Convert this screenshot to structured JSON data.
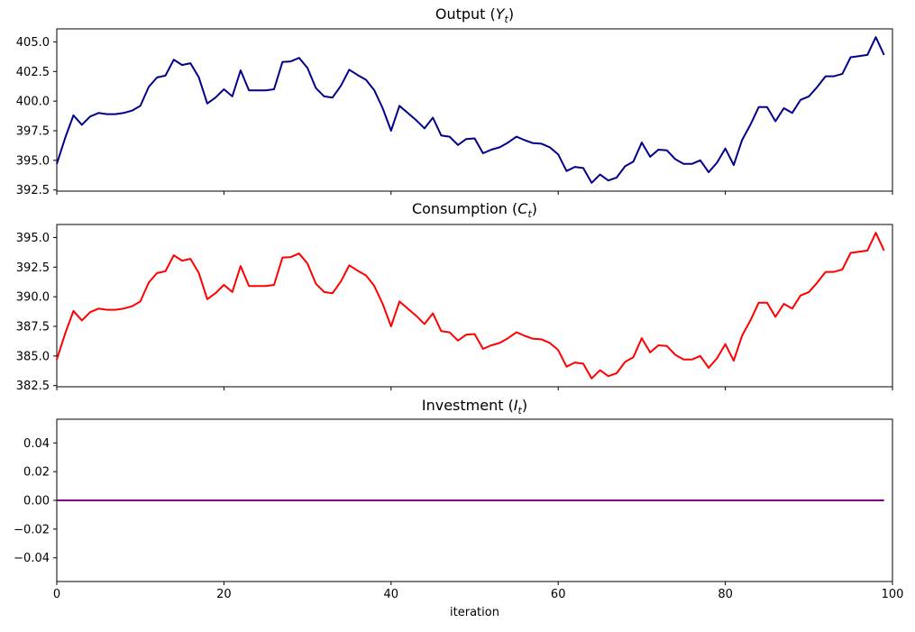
{
  "figure": {
    "background": "#ffffff"
  },
  "xlabel": "iteration",
  "chart_data": [
    {
      "name": "output",
      "type": "line",
      "title": {
        "pre": "Output (",
        "var": "Y",
        "sub": "t",
        "post": ")"
      },
      "color": "#00008B",
      "x_start": 0,
      "x_step": 1,
      "xlim": [
        0,
        100
      ],
      "ylim": [
        392.4,
        406.1
      ],
      "xticks": [
        0,
        20,
        40,
        60,
        80,
        100
      ],
      "xtick_labels": null,
      "yticks": [
        405.0,
        402.5,
        400.0,
        397.5,
        395.0,
        392.5
      ],
      "ytick_labels": [
        "405.0",
        "402.5",
        "400.0",
        "397.5",
        "395.0",
        "392.5"
      ],
      "grid": false,
      "legend": null,
      "values": [
        394.7,
        396.9,
        398.8,
        398.0,
        398.7,
        399.0,
        398.9,
        398.9,
        399.0,
        399.2,
        399.6,
        401.2,
        402.0,
        402.15,
        403.5,
        403.05,
        403.2,
        402.0,
        399.8,
        400.3,
        401.0,
        400.4,
        402.6,
        400.9,
        400.9,
        400.9,
        401.0,
        403.3,
        403.35,
        403.65,
        402.8,
        401.1,
        400.4,
        400.3,
        401.3,
        402.65,
        402.2,
        401.8,
        400.9,
        399.4,
        397.5,
        399.6,
        399.0,
        398.4,
        397.7,
        398.6,
        397.1,
        397.0,
        396.3,
        396.8,
        396.85,
        395.6,
        395.9,
        396.1,
        396.5,
        397.0,
        396.7,
        396.45,
        396.4,
        396.1,
        395.5,
        394.1,
        394.45,
        394.35,
        393.1,
        393.8,
        393.3,
        393.55,
        394.5,
        394.9,
        396.5,
        395.3,
        395.9,
        395.85,
        395.1,
        394.7,
        394.7,
        395.0,
        394.0,
        394.8,
        396.0,
        394.6,
        396.7,
        398.0,
        399.5,
        399.5,
        398.3,
        399.4,
        399.0,
        400.1,
        400.4,
        401.2,
        402.1,
        402.1,
        402.3,
        403.7,
        403.8,
        403.9,
        405.4,
        403.9
      ]
    },
    {
      "name": "consumption",
      "type": "line",
      "title": {
        "pre": "Consumption (",
        "var": "C",
        "sub": "t",
        "post": ")"
      },
      "color": "#FF0000",
      "x_start": 0,
      "x_step": 1,
      "xlim": [
        0,
        100
      ],
      "ylim": [
        382.4,
        396.1
      ],
      "xticks": [
        0,
        20,
        40,
        60,
        80,
        100
      ],
      "xtick_labels": null,
      "yticks": [
        395.0,
        392.5,
        390.0,
        387.5,
        385.0,
        382.5
      ],
      "ytick_labels": [
        "395.0",
        "392.5",
        "390.0",
        "387.5",
        "385.0",
        "382.5"
      ],
      "grid": false,
      "legend": null,
      "values": [
        384.7,
        386.9,
        388.8,
        388.0,
        388.7,
        389.0,
        388.9,
        388.9,
        389.0,
        389.2,
        389.6,
        391.2,
        392.0,
        392.15,
        393.5,
        393.05,
        393.2,
        392.0,
        389.8,
        390.3,
        391.0,
        390.4,
        392.6,
        390.9,
        390.9,
        390.9,
        391.0,
        393.3,
        393.35,
        393.65,
        392.8,
        391.1,
        390.4,
        390.3,
        391.3,
        392.65,
        392.2,
        391.8,
        390.9,
        389.4,
        387.5,
        389.6,
        389.0,
        388.4,
        387.7,
        388.6,
        387.1,
        387.0,
        386.3,
        386.8,
        386.85,
        385.6,
        385.9,
        386.1,
        386.5,
        387.0,
        386.7,
        386.45,
        386.4,
        386.1,
        385.5,
        384.1,
        384.45,
        384.35,
        383.1,
        383.8,
        383.3,
        383.55,
        384.5,
        384.9,
        386.5,
        385.3,
        385.9,
        385.85,
        385.1,
        384.7,
        384.7,
        385.0,
        384.0,
        384.8,
        386.0,
        384.6,
        386.7,
        388.0,
        389.5,
        389.5,
        388.3,
        389.4,
        389.0,
        390.1,
        390.4,
        391.2,
        392.1,
        392.1,
        392.3,
        393.7,
        393.8,
        393.9,
        395.4,
        393.9
      ]
    },
    {
      "name": "investment",
      "type": "line",
      "title": {
        "pre": "Investment (",
        "var": "I",
        "sub": "t",
        "post": ")"
      },
      "color": "#800080",
      "x_start": 0,
      "x_step": 1,
      "xlim": [
        0,
        100
      ],
      "ylim": [
        -0.0565,
        0.0565
      ],
      "xticks": [
        0,
        20,
        40,
        60,
        80,
        100
      ],
      "xtick_labels": [
        "0",
        "20",
        "40",
        "60",
        "80",
        "100"
      ],
      "yticks": [
        0.04,
        0.02,
        0.0,
        -0.02,
        -0.04
      ],
      "ytick_labels": [
        "0.04",
        "0.02",
        "0.00",
        "−0.02",
        "−0.04"
      ],
      "grid": false,
      "legend": null,
      "values": [
        0,
        0,
        0,
        0,
        0,
        0,
        0,
        0,
        0,
        0,
        0,
        0,
        0,
        0,
        0,
        0,
        0,
        0,
        0,
        0,
        0,
        0,
        0,
        0,
        0,
        0,
        0,
        0,
        0,
        0,
        0,
        0,
        0,
        0,
        0,
        0,
        0,
        0,
        0,
        0,
        0,
        0,
        0,
        0,
        0,
        0,
        0,
        0,
        0,
        0,
        0,
        0,
        0,
        0,
        0,
        0,
        0,
        0,
        0,
        0,
        0,
        0,
        0,
        0,
        0,
        0,
        0,
        0,
        0,
        0,
        0,
        0,
        0,
        0,
        0,
        0,
        0,
        0,
        0,
        0,
        0,
        0,
        0,
        0,
        0,
        0,
        0,
        0,
        0,
        0,
        0,
        0,
        0,
        0,
        0,
        0,
        0,
        0,
        0,
        0
      ]
    }
  ]
}
